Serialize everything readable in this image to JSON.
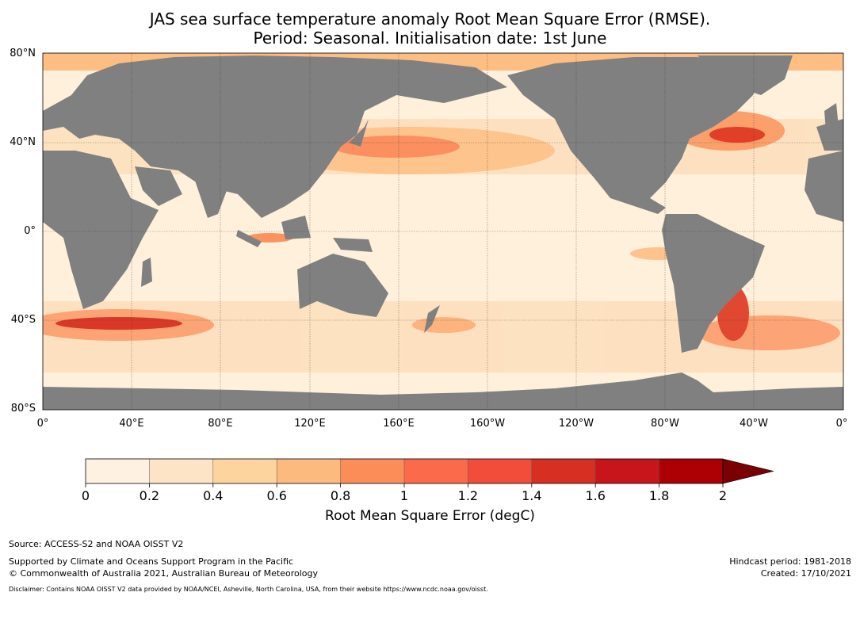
{
  "title_line1": "JAS sea surface temperature anomaly Root Mean Square Error (RMSE).",
  "title_line2": "Period: Seasonal. Initialisation date: 1st June",
  "map": {
    "lat_labels": [
      "80°N",
      "40°N",
      "0°",
      "40°S",
      "80°S"
    ],
    "lon_labels": [
      "0°",
      "40°E",
      "80°E",
      "120°E",
      "160°E",
      "160°W",
      "120°W",
      "80°W",
      "40°W",
      "0°"
    ],
    "land_color": "#808080",
    "ocean_base_color": "#fff0dc"
  },
  "colorbar": {
    "label": "Root Mean Square Error (degC)",
    "ticks": [
      "0",
      "0.2",
      "0.4",
      "0.6",
      "0.8",
      "1",
      "1.2",
      "1.4",
      "1.6",
      "1.8",
      "2"
    ],
    "colors": [
      "#fff1e1",
      "#fee4c7",
      "#fdd39e",
      "#fdba7e",
      "#fc8d59",
      "#fb6a4a",
      "#f24d3b",
      "#d72f21",
      "#c8141b",
      "#ad0005"
    ],
    "extend_color": "#7a0002"
  },
  "footer": {
    "source": "Source: ACCESS-S2 and NOAA OISST V2",
    "support": "Supported by Climate and Oceans Support Program in the Pacific",
    "copyright": "© Commonwealth of Australia 2021, Australian Bureau of Meteorology",
    "hindcast": "Hindcast period: 1981-2018",
    "created": "Created: 17/10/2021",
    "disclaimer": "Disclaimer: Contains NOAA OISST V2 data provided by NOAA/NCEI, Asheville, North Carolina, USA, from their website https://www.ncdc.noaa.gov/oisst."
  }
}
